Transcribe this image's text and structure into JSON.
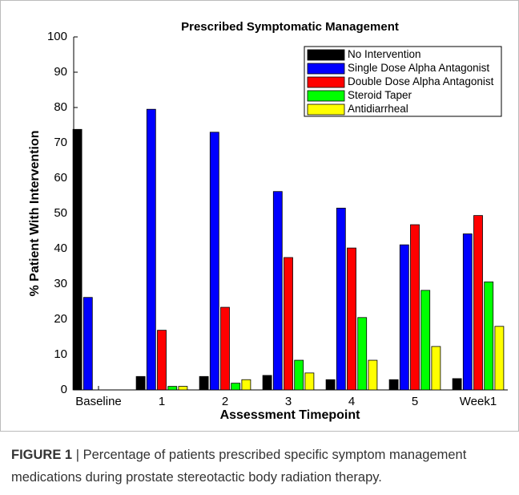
{
  "chart_data": {
    "type": "bar",
    "title": "Prescribed Symptomatic Management",
    "xlabel": "Assessment Timepoint",
    "ylabel": "% Patient With Intervention",
    "categories": [
      "Baseline",
      "1",
      "2",
      "3",
      "4",
      "5",
      "Week1"
    ],
    "series": [
      {
        "name": "No Intervention",
        "color": "#000000",
        "values": [
          73.8,
          3.8,
          3.8,
          4.1,
          2.9,
          2.9,
          3.2
        ]
      },
      {
        "name": "Single Dose Alpha Antagonist",
        "color": "#0000ff",
        "values": [
          26.2,
          79.5,
          73,
          56.2,
          51.5,
          41.1,
          44.2
        ]
      },
      {
        "name": "Double Dose Alpha Antagonist",
        "color": "#ff0000",
        "values": [
          0,
          16.9,
          23.4,
          37.5,
          40.2,
          46.8,
          49.4
        ]
      },
      {
        "name": "Steroid Taper",
        "color": "#00ff00",
        "values": [
          0,
          1,
          1.9,
          8.4,
          20.5,
          28.2,
          30.6
        ]
      },
      {
        "name": "Antidiarrheal",
        "color": "#ffff00",
        "values": [
          0,
          1,
          2.9,
          4.8,
          8.4,
          12.3,
          18
        ]
      }
    ],
    "ylim": [
      0,
      100
    ],
    "yticks": [
      0,
      10,
      20,
      30,
      40,
      50,
      60,
      70,
      80,
      90,
      100
    ],
    "legend": "upper right"
  },
  "caption": {
    "label": "FIGURE 1",
    "lines": [
      "| Percentage of patients prescribed specific symptom management",
      "medications during prostate stereotactic body radiation therapy."
    ]
  }
}
